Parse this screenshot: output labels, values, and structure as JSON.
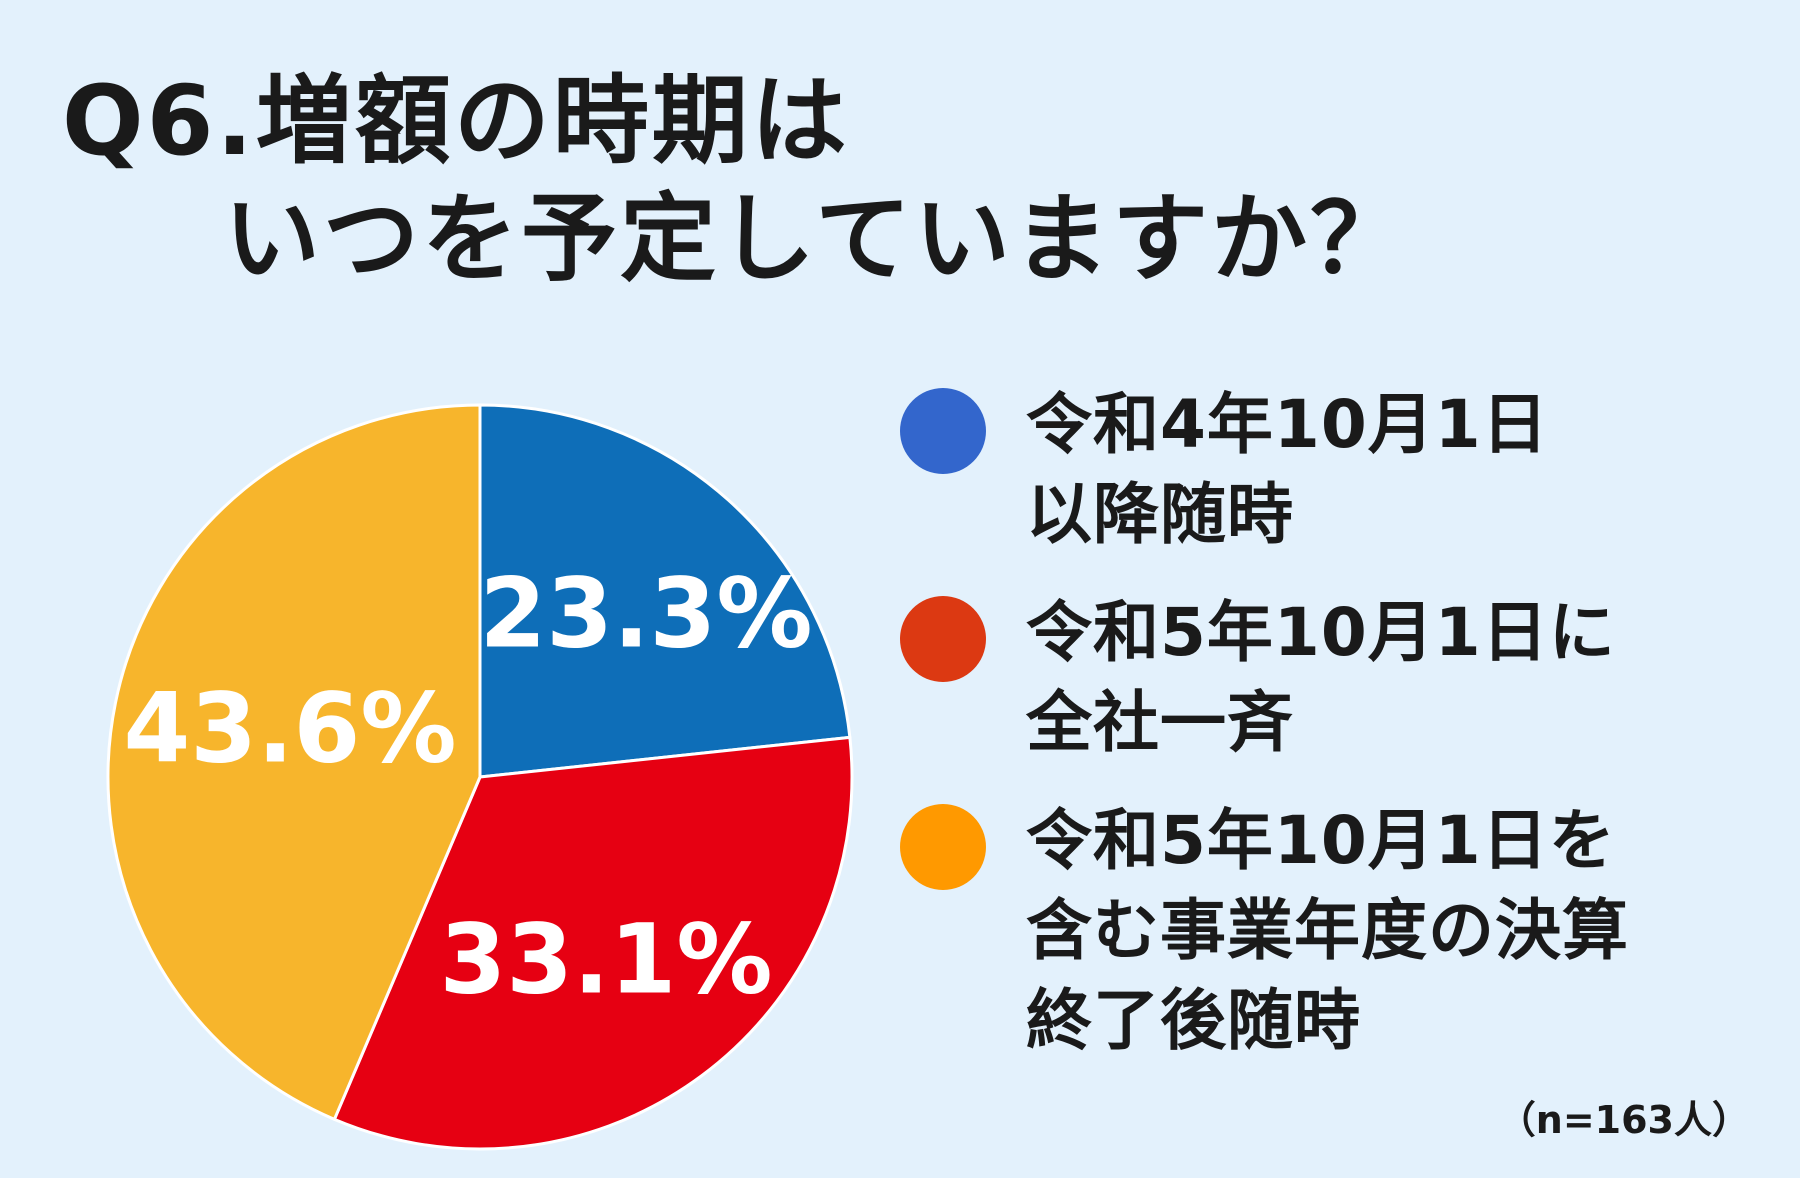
{
  "title": {
    "line1": "Q6.増額の時期は",
    "line2": "いつを予定していますか？"
  },
  "chart_data": {
    "type": "pie",
    "slices": [
      {
        "label": "令和4年10月1日以降随時",
        "value": 23.3,
        "value_label": "23.3%",
        "color": "#0e6eb8"
      },
      {
        "label": "令和5年10月1日に全社一斉",
        "value": 33.1,
        "value_label": "33.1%",
        "color": "#e60012"
      },
      {
        "label": "令和5年10月1日を含む事業年度の決算終了後随時",
        "value": 43.6,
        "value_label": "43.6%",
        "color": "#f7b52c"
      }
    ],
    "start_angle_deg": 0,
    "direction": "clockwise",
    "legend_position": "right"
  },
  "legend": {
    "items": [
      {
        "text": "令和4年10月1日\n以降随時",
        "color": "#3366cc"
      },
      {
        "text": "令和5年10月1日に\n全社一斉",
        "color": "#dc3912"
      },
      {
        "text": "令和5年10月1日を\n含む事業年度の決算\n終了後随時",
        "color": "#ff9900"
      }
    ]
  },
  "note": "（n=163人）"
}
